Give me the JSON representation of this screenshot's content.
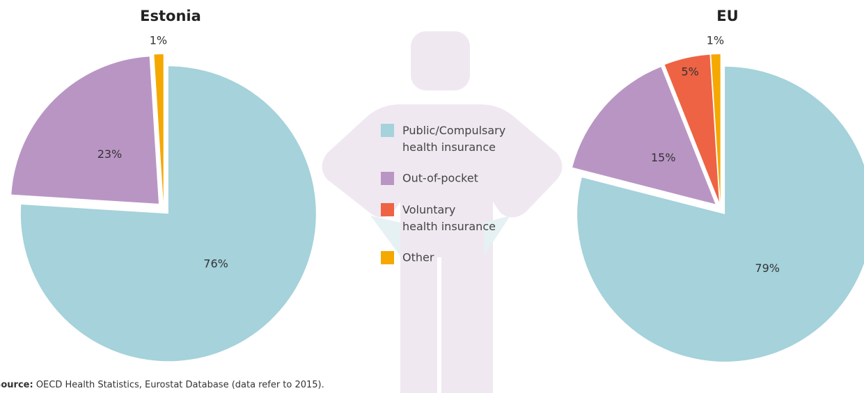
{
  "chart_data": [
    {
      "type": "pie",
      "title": "Estonia",
      "categories": [
        "Public/Compulsary health insurance",
        "Out-of-pocket",
        "Other"
      ],
      "values": [
        76,
        23,
        1
      ],
      "value_labels": [
        "76%",
        "23%",
        "1%"
      ],
      "colors": [
        "#a5d2db",
        "#b995c4",
        "#f5a800"
      ]
    },
    {
      "type": "pie",
      "title": "EU",
      "categories": [
        "Public/Compulsary health insurance",
        "Out-of-pocket",
        "Voluntary health insurance",
        "Other"
      ],
      "values": [
        79,
        15,
        5,
        1
      ],
      "value_labels": [
        "79%",
        "15%",
        "5%",
        "1%"
      ],
      "colors": [
        "#a5d2db",
        "#b995c4",
        "#ee6344",
        "#f5a800"
      ]
    }
  ],
  "legend": {
    "items": [
      {
        "name": "Public/Compulsary health insurance",
        "color": "#a5d2db"
      },
      {
        "name": "Out-of-pocket",
        "color": "#b995c4"
      },
      {
        "name": "Voluntary health insurance",
        "color": "#ee6344"
      },
      {
        "name": "Other",
        "color": "#f5a800"
      }
    ]
  },
  "source": {
    "label": "Source:",
    "text": "OECD Health Statistics, Eurostat Database (data refer to 2015)."
  }
}
